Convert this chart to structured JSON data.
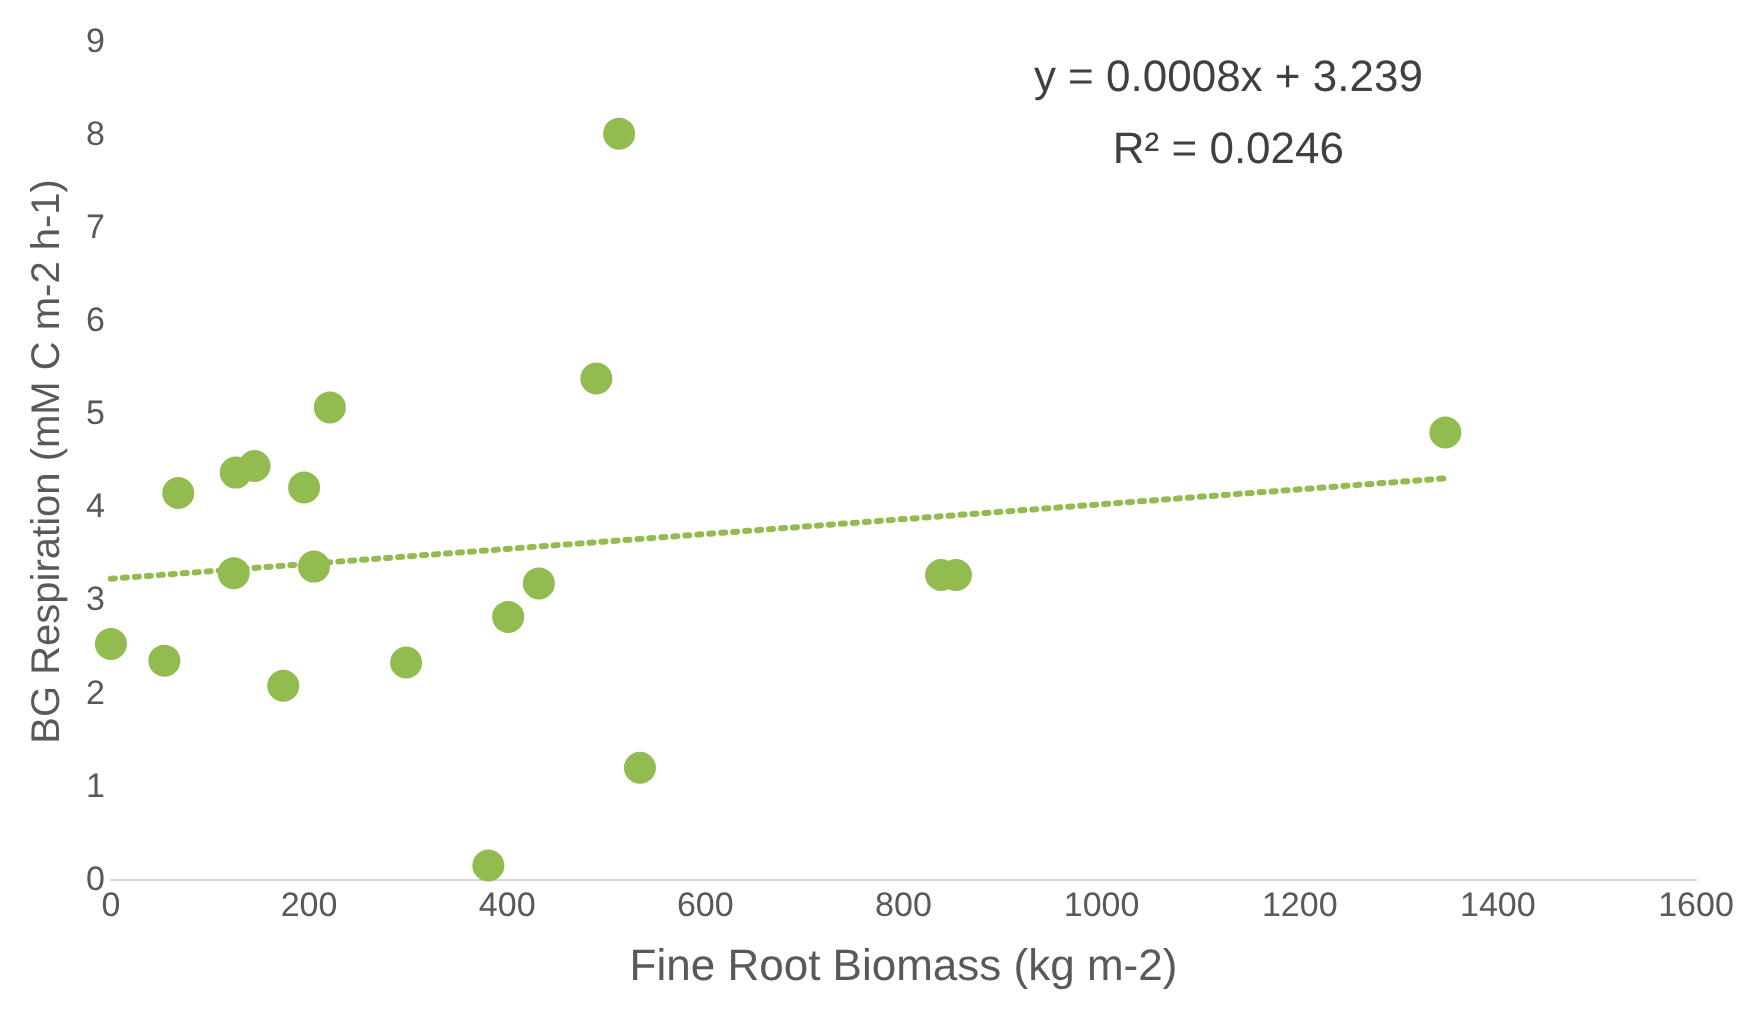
{
  "chart_data": {
    "type": "scatter",
    "xlabel": "Fine Root Biomass (kg m-2)",
    "ylabel": "BG Respiration (mM C m-2 h-1)",
    "xlim": [
      0,
      1600
    ],
    "xticks": [
      0,
      200,
      400,
      600,
      800,
      1000,
      1200,
      1400,
      1600
    ],
    "ylim": [
      0,
      9
    ],
    "yticks": [
      0,
      1,
      2,
      3,
      4,
      5,
      6,
      7,
      8,
      9
    ],
    "grid": false,
    "legend": false,
    "marker": "circle",
    "annotations": [
      "y = 0.0008x + 3.239",
      "R² = 0.0246"
    ],
    "series": [
      {
        "color": "#92bb50",
        "x": [
          0,
          54,
          68,
          124,
          126,
          145,
          174,
          195,
          205,
          221,
          298,
          381,
          401,
          432,
          490,
          513,
          534,
          838,
          853,
          1347
        ],
        "values": [
          2.54,
          2.36,
          4.16,
          3.3,
          4.38,
          4.45,
          2.09,
          4.22,
          3.37,
          5.08,
          2.34,
          0.16,
          2.83,
          3.19,
          5.39,
          8.02,
          1.21,
          3.28,
          3.28,
          4.81
        ]
      },
      {
        "type": "line",
        "color": "#92bb50",
        "line_style": "dotted",
        "marker": "none",
        "x": [
          0,
          1350
        ],
        "values": [
          3.24,
          4.32
        ]
      }
    ]
  }
}
